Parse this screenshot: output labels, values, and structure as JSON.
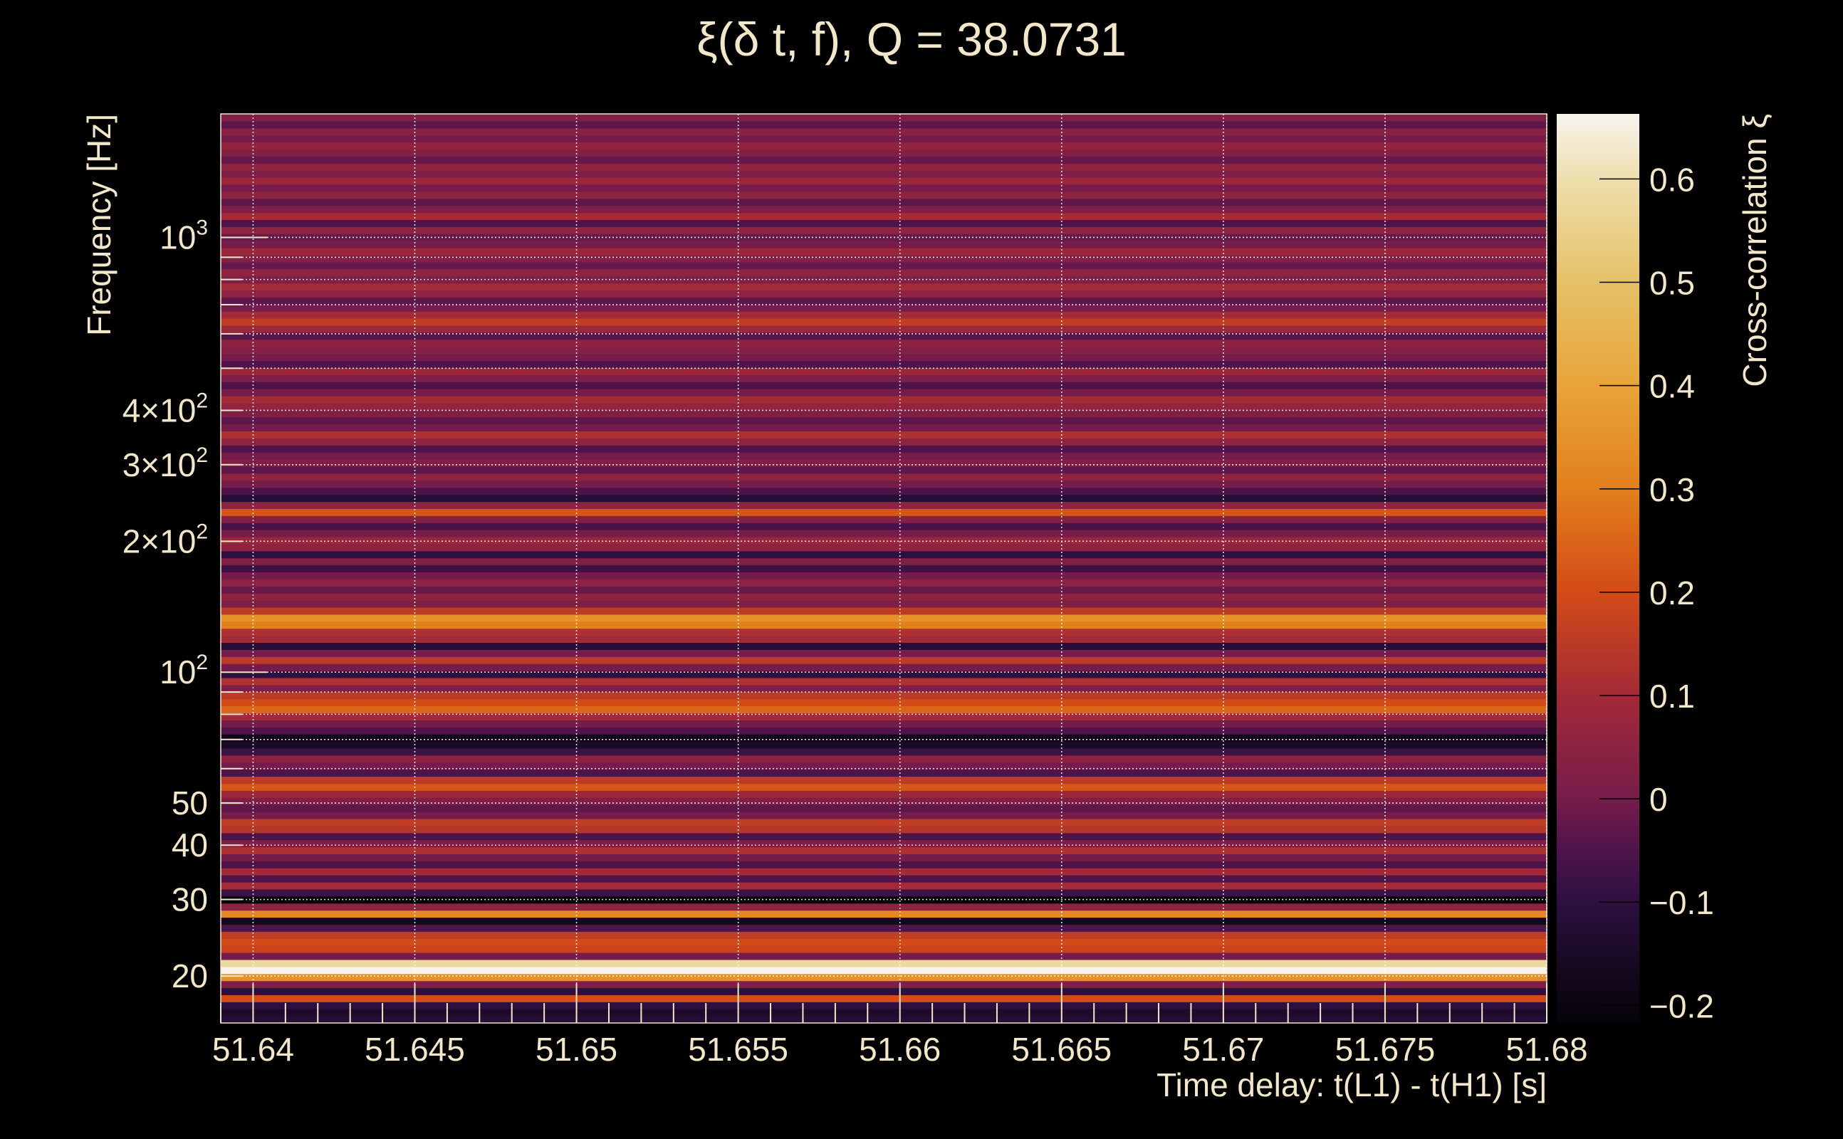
{
  "chart_data": {
    "type": "heatmap",
    "title": "ξ(δ t, f), Q = 38.0731",
    "xlabel": "Time delay: t(L1) - t(H1) [s]",
    "ylabel": "Frequency [Hz]",
    "zlabel": "Cross-correlation ξ",
    "xlim": [
      51.639,
      51.68
    ],
    "ylim": [
      15.6,
      1923
    ],
    "yscale": "log",
    "zlim": [
      -0.217,
      0.663
    ],
    "grid": true,
    "colorbar": "right",
    "x_ticks": [
      {
        "value": 51.64,
        "label": "51.64"
      },
      {
        "value": 51.645,
        "label": "51.645"
      },
      {
        "value": 51.65,
        "label": "51.65"
      },
      {
        "value": 51.655,
        "label": "51.655"
      },
      {
        "value": 51.66,
        "label": "51.66"
      },
      {
        "value": 51.665,
        "label": "51.665"
      },
      {
        "value": 51.67,
        "label": "51.67"
      },
      {
        "value": 51.675,
        "label": "51.675"
      },
      {
        "value": 51.68,
        "label": "51.68"
      }
    ],
    "y_ticks": [
      {
        "value": 20,
        "base": "20",
        "exp": ""
      },
      {
        "value": 30,
        "base": "30",
        "exp": ""
      },
      {
        "value": 40,
        "base": "40",
        "exp": ""
      },
      {
        "value": 50,
        "base": "50",
        "exp": ""
      },
      {
        "value": 100,
        "base": "10",
        "exp": "2"
      },
      {
        "value": 200,
        "base": "2×10",
        "exp": "2"
      },
      {
        "value": 300,
        "base": "3×10",
        "exp": "2"
      },
      {
        "value": 400,
        "base": "4×10",
        "exp": "2"
      },
      {
        "value": 1000,
        "base": "10",
        "exp": "3"
      }
    ],
    "y_minor_ticks": [
      20,
      30,
      40,
      50,
      60,
      70,
      80,
      90,
      100,
      200,
      300,
      400,
      500,
      600,
      700,
      800,
      900,
      1000
    ],
    "z_ticks": [
      {
        "value": -0.2,
        "label": "−0.2"
      },
      {
        "value": -0.1,
        "label": "−0.1"
      },
      {
        "value": 0,
        "label": "0"
      },
      {
        "value": 0.1,
        "label": "0.1"
      },
      {
        "value": 0.2,
        "label": "0.2"
      },
      {
        "value": 0.3,
        "label": "0.3"
      },
      {
        "value": 0.4,
        "label": "0.4"
      },
      {
        "value": 0.5,
        "label": "0.5"
      },
      {
        "value": 0.6,
        "label": "0.6"
      }
    ],
    "colormap": [
      {
        "z": -0.217,
        "color": "#050208"
      },
      {
        "z": -0.15,
        "color": "#1a0a26"
      },
      {
        "z": -0.1,
        "color": "#2d1040"
      },
      {
        "z": -0.05,
        "color": "#4e144a"
      },
      {
        "z": 0.0,
        "color": "#761c4a"
      },
      {
        "z": 0.1,
        "color": "#a32a37"
      },
      {
        "z": 0.2,
        "color": "#d34b17"
      },
      {
        "z": 0.3,
        "color": "#e2801c"
      },
      {
        "z": 0.4,
        "color": "#e8a43a"
      },
      {
        "z": 0.5,
        "color": "#e5c167"
      },
      {
        "z": 0.6,
        "color": "#eedfae"
      },
      {
        "z": 0.663,
        "color": "#f7f4ee"
      }
    ],
    "rows_note": "values per log-spaced frequency bin, bottom (low f) to top (high f), approximately constant over time delay",
    "row_values": [
      -0.12,
      -0.14,
      -0.1,
      0.2,
      -0.1,
      0.02,
      0.35,
      0.66,
      0.58,
      0.0,
      0.18,
      0.2,
      0.16,
      -0.05,
      -0.17,
      0.32,
      0.05,
      -0.22,
      -0.08,
      0.1,
      -0.05,
      0.1,
      -0.05,
      0.0,
      0.12,
      0.02,
      -0.05,
      0.14,
      0.16,
      0.0,
      -0.03,
      0.02,
      0.08,
      0.22,
      0.15,
      -0.05,
      0.0,
      0.05,
      -0.08,
      -0.15,
      -0.18,
      -0.05,
      0.0,
      0.1,
      0.25,
      0.2,
      0.15,
      0.02,
      0.12,
      -0.1,
      0.0,
      0.15,
      0.0,
      -0.12,
      0.1,
      0.12,
      0.3,
      0.35,
      0.15,
      0.02,
      0.05,
      -0.02,
      0.05,
      0.0,
      -0.08,
      0.02,
      -0.1,
      0.05,
      0.08,
      0.0,
      -0.06,
      0.03,
      0.22,
      0.05,
      -0.12,
      -0.05,
      0.0,
      0.05,
      -0.03,
      0.02,
      0.0,
      -0.05,
      0.05,
      0.12,
      0.0,
      -0.03,
      0.02,
      0.06,
      0.1,
      0.0,
      -0.05,
      0.02,
      0.08,
      -0.05,
      0.0,
      0.03,
      0.05,
      -0.04,
      0.08,
      0.16,
      0.1,
      0.0,
      -0.03,
      0.05,
      0.1,
      0.02,
      0.05,
      -0.02,
      0.03,
      0.08,
      0.0,
      -0.02,
      0.05,
      -0.05,
      0.1,
      0.02,
      -0.03,
      0.05,
      0.0,
      0.08,
      0.02,
      0.05,
      -0.02,
      0.03,
      0.06,
      0.0,
      0.04,
      -0.03,
      0.02
    ]
  }
}
